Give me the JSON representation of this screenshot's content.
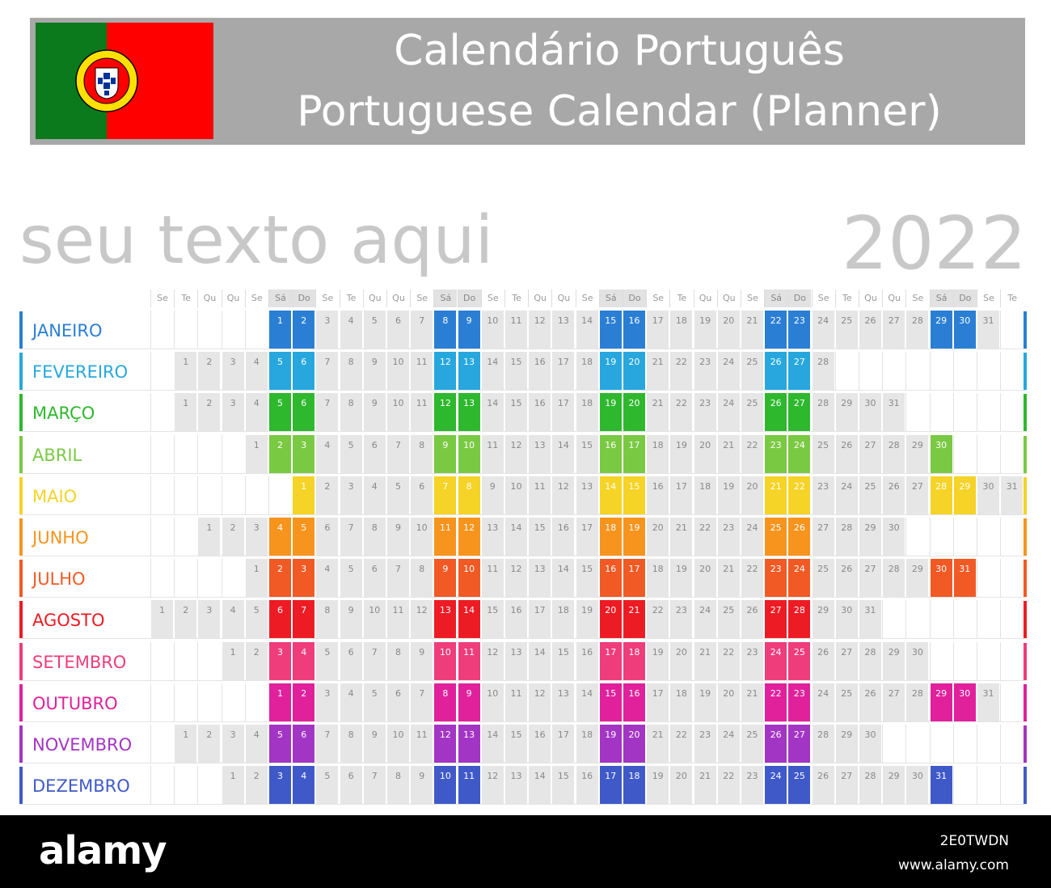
{
  "header": {
    "title_pt": "Calendário Português",
    "title_en": "Portuguese Calendar (Planner)",
    "bg_color": "#a8a8a8",
    "flag_icon": "portugal-flag-icon"
  },
  "placeholder_text": "seu texto aqui",
  "year": "2022",
  "weekdays": [
    "Se",
    "Te",
    "Qu",
    "Qu",
    "Se",
    "Sá",
    "Do",
    "Se",
    "Te",
    "Qu",
    "Qu",
    "Se",
    "Sá",
    "Do",
    "Se",
    "Te",
    "Qu",
    "Qu",
    "Se",
    "Sá",
    "Do",
    "Se",
    "Te",
    "Qu",
    "Qu",
    "Se",
    "Sá",
    "Do",
    "Se",
    "Te",
    "Qu",
    "Qu",
    "Se",
    "Sá",
    "Do",
    "Se",
    "Te"
  ],
  "months": [
    {
      "name": "JANEIRO",
      "start": 5,
      "days": 31,
      "color": "#2a7fd4"
    },
    {
      "name": "FEVEREIRO",
      "start": 1,
      "days": 28,
      "color": "#27a7de"
    },
    {
      "name": "MARÇO",
      "start": 1,
      "days": 31,
      "color": "#2eb82e"
    },
    {
      "name": "ABRIL",
      "start": 4,
      "days": 30,
      "color": "#7ac943"
    },
    {
      "name": "MAIO",
      "start": 6,
      "days": 31,
      "color": "#f5d327"
    },
    {
      "name": "JUNHO",
      "start": 2,
      "days": 30,
      "color": "#f7941d"
    },
    {
      "name": "JULHO",
      "start": 4,
      "days": 31,
      "color": "#f15a24"
    },
    {
      "name": "AGOSTO",
      "start": 0,
      "days": 31,
      "color": "#ed1c24"
    },
    {
      "name": "SETEMBRO",
      "start": 3,
      "days": 30,
      "color": "#ee3d7a"
    },
    {
      "name": "OUTUBRO",
      "start": 5,
      "days": 31,
      "color": "#e0219b"
    },
    {
      "name": "NOVEMBRO",
      "start": 1,
      "days": 30,
      "color": "#a335c4"
    },
    {
      "name": "DEZEMBRO",
      "start": 3,
      "days": 31,
      "color": "#3f5ac8"
    }
  ],
  "footer": {
    "logo": "alamy",
    "image_id": "2E0TWDN",
    "url": "www.alamy.com"
  }
}
